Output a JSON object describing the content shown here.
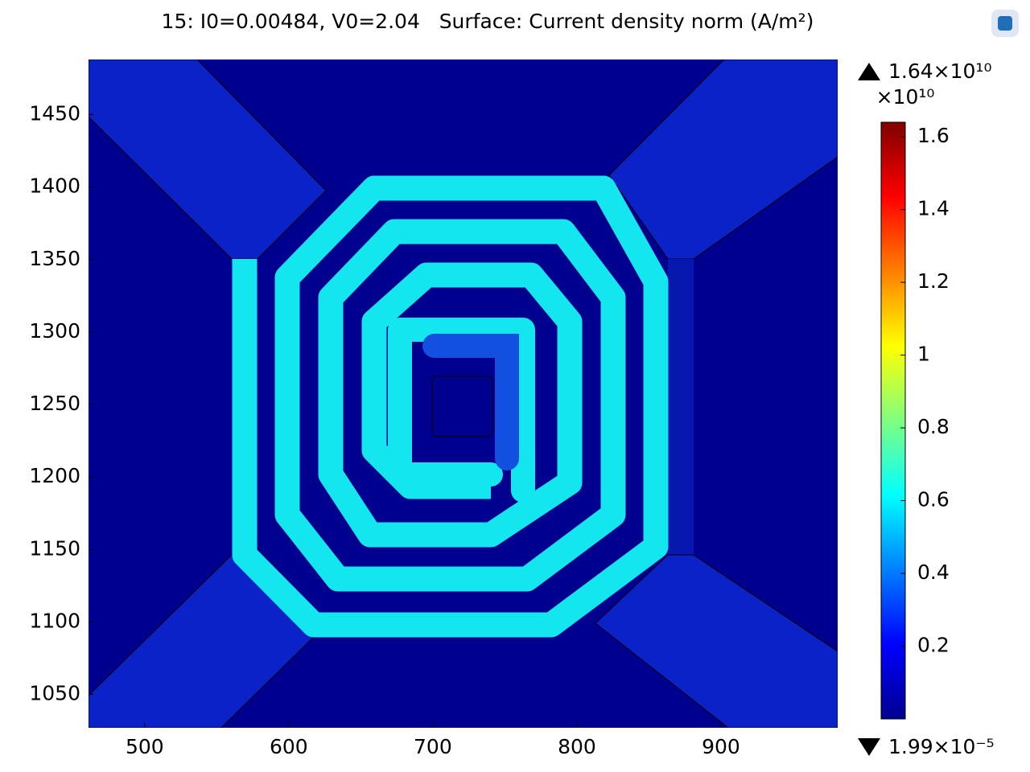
{
  "chart_data": {
    "type": "surface",
    "title": "15: I0=0.00484, V0=2.04   Surface: Current density norm (A/m²)",
    "xlim": [
      461,
      981
    ],
    "xticks": [
      500,
      600,
      700,
      800,
      900
    ],
    "ylim": [
      1027,
      1488
    ],
    "yticks": [
      1050,
      1100,
      1150,
      1200,
      1250,
      1300,
      1350,
      1400,
      1450
    ],
    "colorbar": {
      "colormap": "jet",
      "values": [
        1.99e-05,
        16400000000.0
      ],
      "value_labels": [
        "1.99×10⁻⁵",
        "1.64×10¹⁰"
      ],
      "exponent_label": "×10¹⁰",
      "ticks": [
        {
          "value": 2000000000.0,
          "label": "0.2"
        },
        {
          "value": 4000000000.0,
          "label": "0.4"
        },
        {
          "value": 6000000000.0,
          "label": "0.6"
        },
        {
          "value": 8000000000.0,
          "label": "0.8"
        },
        {
          "value": 10000000000.0,
          "label": "1"
        },
        {
          "value": 12000000000.0,
          "label": "1.2"
        },
        {
          "value": 14000000000.0,
          "label": "1.4"
        },
        {
          "value": 16000000000.0,
          "label": "1.6"
        }
      ]
    }
  }
}
